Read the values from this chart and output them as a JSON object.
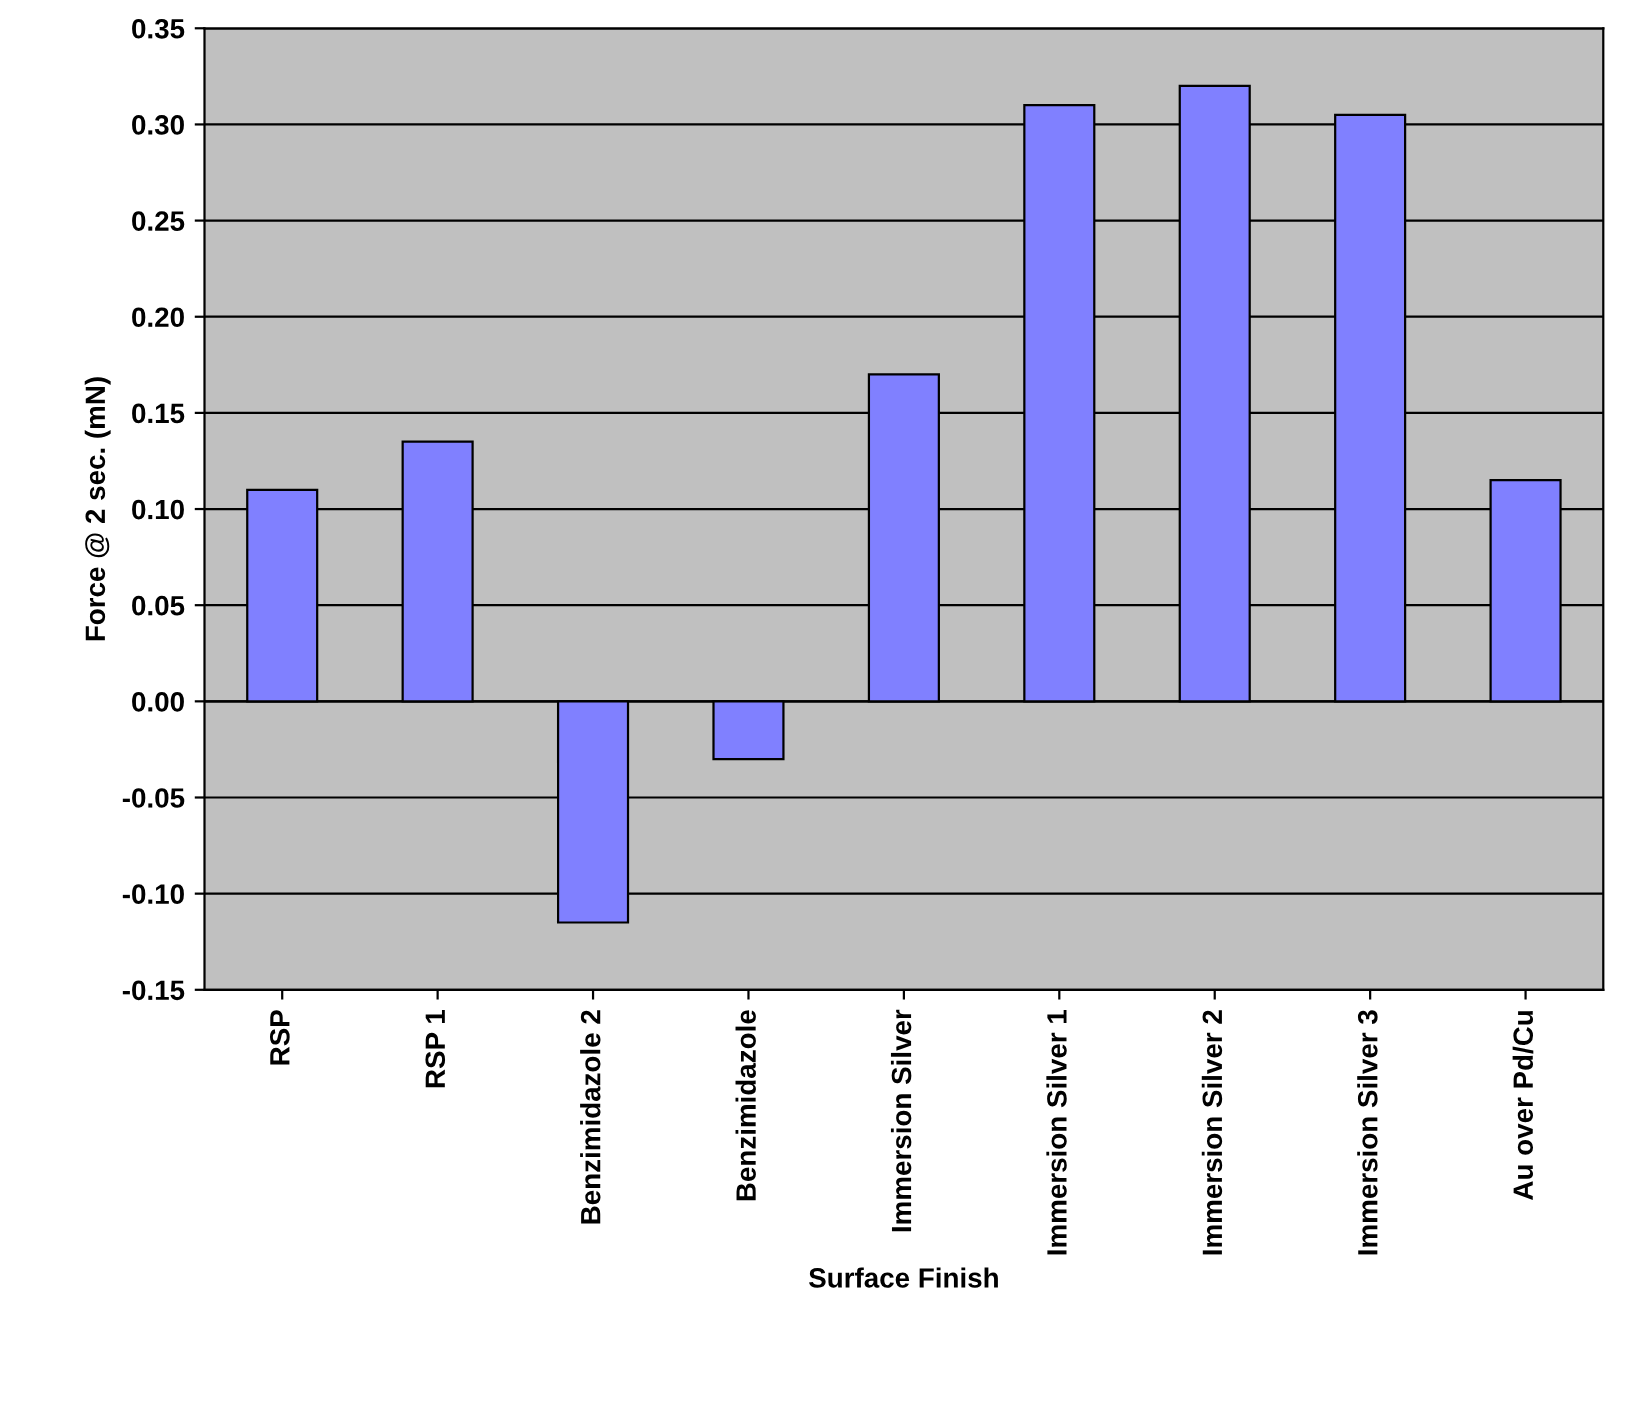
{
  "chart_data": {
    "type": "bar",
    "xlabel": "Surface Finish",
    "ylabel": "Force @ 2 sec. (mN)",
    "categories": [
      "RSP",
      "RSP 1",
      "Benzimidazole 2",
      "Benzimidazole",
      "Immersion Silver",
      "Immersion Silver 1",
      "Immersion Silver 2",
      "Immersion Silver 3",
      "Au over Pd/Cu"
    ],
    "values": [
      0.11,
      0.135,
      -0.115,
      -0.03,
      0.17,
      0.31,
      0.32,
      0.305,
      0.115
    ],
    "color": "#8080ff",
    "ylim": [
      -0.15,
      0.35
    ],
    "yticks": [
      {
        "value": -0.15,
        "label": "-0.15"
      },
      {
        "value": -0.1,
        "label": "-0.10"
      },
      {
        "value": -0.05,
        "label": "-0.05"
      },
      {
        "value": 0,
        "label": "0.00"
      },
      {
        "value": 0.05,
        "label": "0.05"
      },
      {
        "value": 0.1,
        "label": "0.10"
      },
      {
        "value": 0.15,
        "label": "0.15"
      },
      {
        "value": 0.2,
        "label": "0.20"
      },
      {
        "value": 0.25,
        "label": "0.25"
      },
      {
        "value": 0.3,
        "label": "0.30"
      },
      {
        "value": 0.35,
        "label": "0.35"
      }
    ],
    "grid": "y",
    "legend": false
  }
}
